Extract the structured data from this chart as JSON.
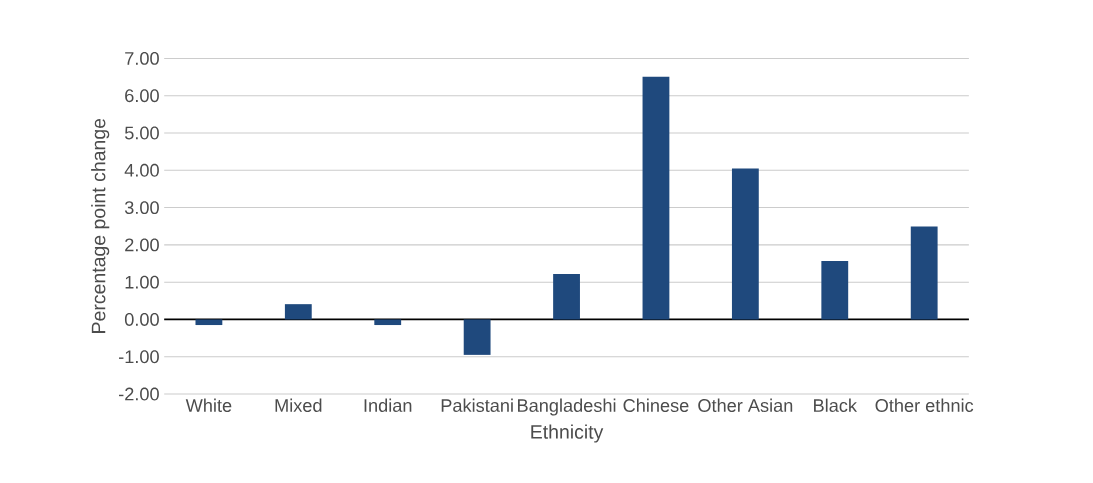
{
  "chart_data": {
    "type": "bar",
    "xlabel": "Ethnicity",
    "ylabel": "Percentage point change",
    "categories": [
      "White",
      "Mixed",
      "Indian",
      "Pakistani",
      "Bangladeshi",
      "Chinese",
      "Other Asian",
      "Black",
      "Other ethnic"
    ],
    "values": [
      -0.15,
      0.41,
      -0.15,
      -0.95,
      1.22,
      6.51,
      4.05,
      1.57,
      2.49
    ],
    "color": "#1f497d",
    "ylim": [
      -2,
      7
    ],
    "yticks": [
      {
        "value": -2,
        "label": "-2.00"
      },
      {
        "value": -1,
        "label": "-1.00"
      },
      {
        "value": 0,
        "label": "0.00"
      },
      {
        "value": 1,
        "label": "1.00"
      },
      {
        "value": 2,
        "label": "2.00"
      },
      {
        "value": 3,
        "label": "3.00"
      },
      {
        "value": 4,
        "label": "4.00"
      },
      {
        "value": 5,
        "label": "5.00"
      },
      {
        "value": 6,
        "label": "6.00"
      },
      {
        "value": 7,
        "label": "7.00"
      }
    ],
    "grid": "y"
  }
}
